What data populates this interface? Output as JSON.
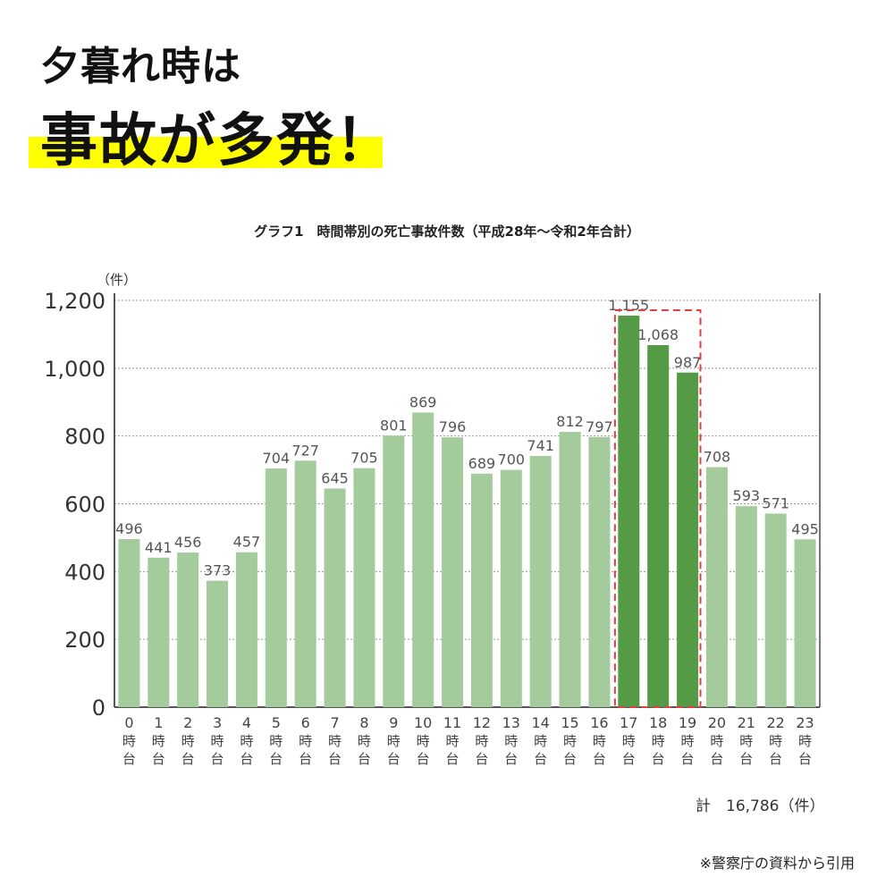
{
  "headline": {
    "line1": "夕暮れ時は",
    "line2": "事故が多発！"
  },
  "colors": {
    "highlight": "#ffff00",
    "bar": "#a3cb9b",
    "bar_highlight": "#559a44",
    "box": "#e04040"
  },
  "chart_data": {
    "type": "bar",
    "title": "グラフ1　時間帯別の死亡事故件数（平成28年～令和2年合計）",
    "ylabel": "（件）",
    "xlabel": "",
    "ylim": [
      0,
      1200
    ],
    "yticks": [
      "0",
      "200",
      "400",
      "600",
      "800",
      "1,000",
      "1,200"
    ],
    "ytick_values": [
      0,
      200,
      400,
      600,
      800,
      1000,
      1200
    ],
    "grid": true,
    "categories": [
      "0",
      "1",
      "2",
      "3",
      "4",
      "5",
      "6",
      "7",
      "8",
      "9",
      "10",
      "11",
      "12",
      "13",
      "14",
      "15",
      "16",
      "17",
      "18",
      "19",
      "20",
      "21",
      "22",
      "23"
    ],
    "category_suffix": [
      "時",
      "台"
    ],
    "values": [
      496,
      441,
      456,
      373,
      457,
      704,
      727,
      645,
      705,
      801,
      869,
      796,
      689,
      700,
      741,
      812,
      797,
      1155,
      1068,
      987,
      708,
      593,
      571,
      495
    ],
    "value_labels": [
      "496",
      "441",
      "456",
      "373",
      "457",
      "704",
      "727",
      "645",
      "705",
      "801",
      "869",
      "796",
      "689",
      "700",
      "741",
      "812",
      "797",
      "1,155",
      "1,068",
      "987",
      "708",
      "593",
      "571",
      "495"
    ],
    "highlighted": [
      17,
      18,
      19
    ],
    "total_label": "計　16,786（件）"
  },
  "source": "※警察庁の資料から引用"
}
